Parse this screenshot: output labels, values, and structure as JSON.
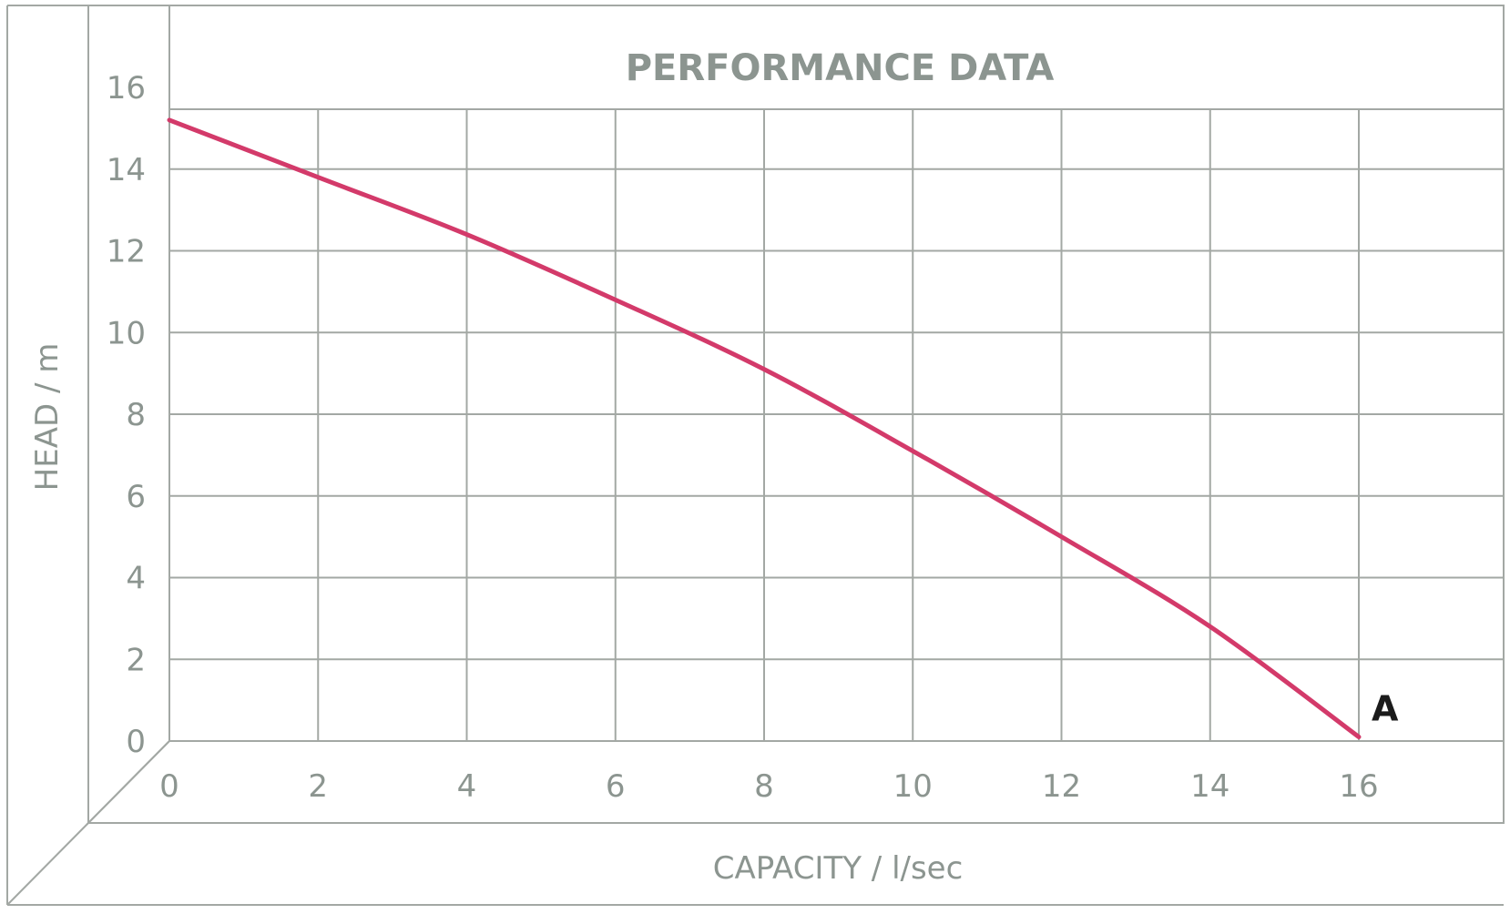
{
  "chart_data": {
    "type": "line",
    "title": "PERFORMANCE DATA",
    "xlabel": "CAPACITY / l/sec",
    "ylabel": "HEAD / m",
    "xlim": [
      0,
      18
    ],
    "ylim": [
      0,
      17
    ],
    "x_ticks": [
      "0",
      "2",
      "4",
      "6",
      "8",
      "10",
      "12",
      "14",
      "16"
    ],
    "y_ticks": [
      "0",
      "2",
      "4",
      "6",
      "8",
      "10",
      "12",
      "14",
      "16"
    ],
    "grid": true,
    "series": [
      {
        "x": [
          0,
          2,
          4,
          6,
          8,
          10,
          12,
          14,
          16
        ],
        "y": [
          15.2,
          13.8,
          12.4,
          10.8,
          9.1,
          7.1,
          5.0,
          2.8,
          0.1
        ]
      }
    ],
    "annotations": [
      {
        "text": "A",
        "x": 16,
        "y": 0.1
      }
    ],
    "colors": {
      "curve": "#d33a6a",
      "grid": "#a3a8a4",
      "text": "#8c9590"
    }
  }
}
